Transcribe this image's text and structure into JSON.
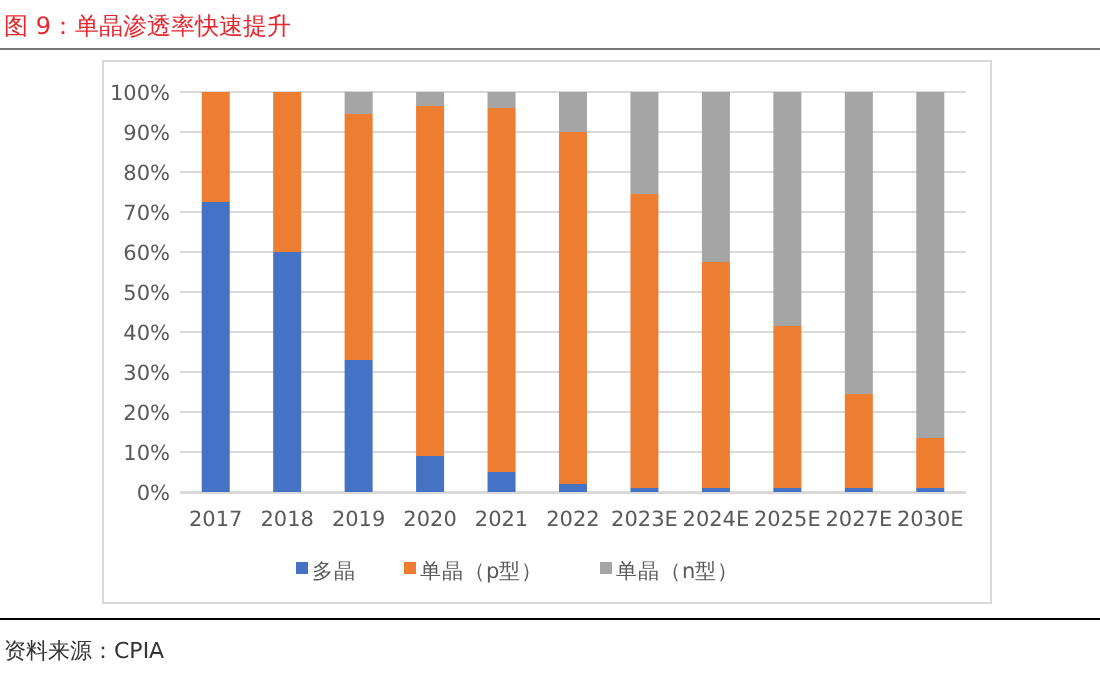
{
  "chart_data": {
    "type": "bar",
    "stacked": true,
    "title": "图 9：单晶渗透率快速提升",
    "categories": [
      "2017",
      "2018",
      "2019",
      "2020",
      "2021",
      "2022",
      "2023E",
      "2024E",
      "2025E",
      "2027E",
      "2030E"
    ],
    "series": [
      {
        "name": "多晶",
        "color": "#4472c4",
        "values": [
          72.5,
          60,
          33,
          9,
          5,
          2,
          1,
          1,
          1,
          1,
          1
        ]
      },
      {
        "name": "单晶（p型）",
        "color": "#ed7d31",
        "values": [
          27.5,
          40,
          61.5,
          87.5,
          91,
          88,
          73.5,
          56.5,
          40.5,
          23.5,
          12.5
        ]
      },
      {
        "name": "单晶（n型）",
        "color": "#a5a5a5",
        "values": [
          0,
          0,
          5.5,
          3.5,
          4,
          10,
          25.5,
          42.5,
          58.5,
          75.5,
          86.5
        ]
      }
    ],
    "ylim": [
      0,
      100
    ],
    "yticks": [
      {
        "value": 0,
        "label": "0%"
      },
      {
        "value": 10,
        "label": "10%"
      },
      {
        "value": 20,
        "label": "20%"
      },
      {
        "value": 30,
        "label": "30%"
      },
      {
        "value": 40,
        "label": "40%"
      },
      {
        "value": 50,
        "label": "50%"
      },
      {
        "value": 60,
        "label": "60%"
      },
      {
        "value": 70,
        "label": "70%"
      },
      {
        "value": 80,
        "label": "80%"
      },
      {
        "value": 90,
        "label": "90%"
      },
      {
        "value": 100,
        "label": "100%"
      }
    ],
    "grid": "y",
    "legend": "bottom",
    "annotations": [
      "资料来源：CPIA"
    ]
  }
}
